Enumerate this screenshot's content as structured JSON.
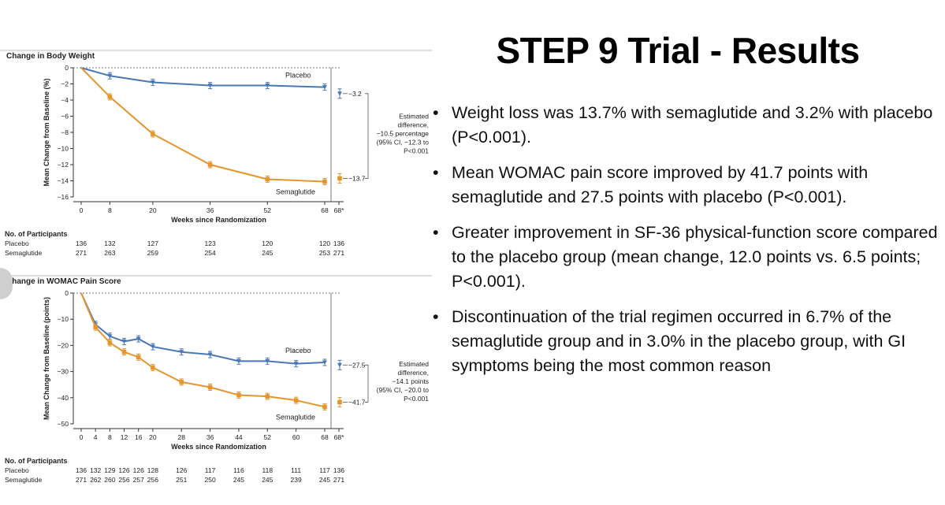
{
  "slide": {
    "title": "STEP 9 Trial - Results",
    "bullets": [
      "Weight loss was 13.7% with semaglutide and 3.2% with placebo (P<0.001).",
      "Mean WOMAC pain score improved by 41.7 points with semaglutide and 27.5 points with placebo (P<0.001).",
      "Greater improvement in SF-36 physical-function score compared to the placebo group (mean change, 12.0 points vs. 6.5 points; P<0.001).",
      "Discontinuation of the trial regimen occurred in 6.7% of the semaglutide group and in 3.0% in the placebo group, with GI symptoms being the most common reason"
    ],
    "bullet_glyph": "•"
  },
  "colors": {
    "placebo": "#4a78b5",
    "semaglutide": "#e5952e",
    "axis": "#333333"
  },
  "chart_data": [
    {
      "type": "line",
      "title": "Change in Body Weight",
      "ylabel": "Mean Change from Baseline (%)",
      "xlabel": "Weeks since Randomization",
      "x_ticks": [
        "0",
        "8",
        "20",
        "36",
        "52",
        "68",
        "68*"
      ],
      "ylim": [
        -16,
        0
      ],
      "y_ticks": [
        0,
        -2,
        -4,
        -6,
        -8,
        -10,
        -12,
        -14,
        -16
      ],
      "xlim": [
        0,
        68
      ],
      "series": [
        {
          "name": "Placebo",
          "x": [
            0,
            8,
            20,
            36,
            52,
            68
          ],
          "values": [
            0,
            -1.0,
            -1.8,
            -2.2,
            -2.2,
            -2.4
          ]
        },
        {
          "name": "Semaglutide",
          "x": [
            0,
            8,
            20,
            36,
            52,
            68
          ],
          "values": [
            0,
            -3.6,
            -8.2,
            -12.0,
            -13.8,
            -14.1
          ]
        }
      ],
      "endpoints": [
        {
          "label": "−3.2",
          "value": -3.2,
          "series": "Placebo"
        },
        {
          "label": "−13.7",
          "value": -13.7,
          "series": "Semaglutide"
        }
      ],
      "annotation": [
        "Estimated",
        "difference,",
        "−10.5 percentage",
        "(95% CI, −12.3 to",
        "P<0.001"
      ],
      "participants_title": "No. of Participants",
      "participants": [
        {
          "group": "Placebo",
          "counts": [
            "136",
            "132",
            "127",
            "123",
            "120",
            "120",
            "136"
          ]
        },
        {
          "group": "Semaglutide",
          "counts": [
            "271",
            "263",
            "259",
            "254",
            "245",
            "253",
            "271"
          ]
        }
      ]
    },
    {
      "type": "line",
      "title": "Change in WOMAC Pain Score",
      "ylabel": "Mean Change from Baseline (points)",
      "xlabel": "Weeks since Randomization",
      "x_ticks": [
        "0",
        "4",
        "8",
        "12",
        "16",
        "20",
        "28",
        "36",
        "44",
        "52",
        "60",
        "68",
        "68*"
      ],
      "ylim": [
        -50,
        0
      ],
      "y_ticks": [
        0,
        -10,
        -20,
        -30,
        -40,
        -50
      ],
      "xlim": [
        0,
        68
      ],
      "series": [
        {
          "name": "Placebo",
          "x": [
            0,
            4,
            8,
            12,
            16,
            20,
            28,
            36,
            44,
            52,
            60,
            68
          ],
          "values": [
            0,
            -12,
            -16.5,
            -18.5,
            -17.5,
            -20.5,
            -22.5,
            -23.5,
            -26,
            -26,
            -27,
            -26.5
          ]
        },
        {
          "name": "Semaglutide",
          "x": [
            0,
            4,
            8,
            12,
            16,
            20,
            28,
            36,
            44,
            52,
            60,
            68
          ],
          "values": [
            0,
            -13,
            -19,
            -22.5,
            -24.5,
            -28.5,
            -34,
            -36,
            -39,
            -39.5,
            -41,
            -43.5
          ]
        }
      ],
      "endpoints": [
        {
          "label": "−27.5",
          "value": -27.5,
          "series": "Placebo"
        },
        {
          "label": "−41.7",
          "value": -41.7,
          "series": "Semaglutide"
        }
      ],
      "annotation": [
        "Estimated",
        "difference,",
        "−14.1 points",
        "(95% CI, −20.0 to",
        "P<0.001"
      ],
      "participants_title": "No. of Participants",
      "participants": [
        {
          "group": "Placebo",
          "counts": [
            "136",
            "132",
            "129",
            "126",
            "126",
            "128",
            "126",
            "117",
            "116",
            "118",
            "111",
            "117",
            "136"
          ]
        },
        {
          "group": "Semaglutide",
          "counts": [
            "271",
            "262",
            "260",
            "256",
            "257",
            "256",
            "251",
            "250",
            "245",
            "245",
            "239",
            "245",
            "271"
          ]
        }
      ]
    }
  ]
}
